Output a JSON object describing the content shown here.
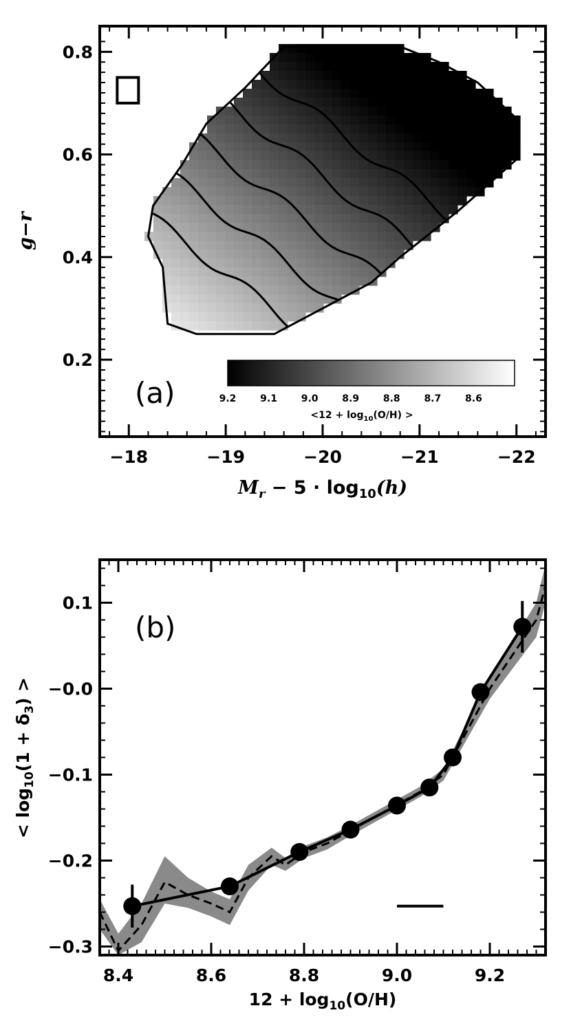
{
  "chart_data": [
    {
      "type": "heatmap",
      "panel_label": "(a)",
      "xlabel": "M_r − 5·log10(h)",
      "xlabel_parts": {
        "main": "M",
        "sub": "r",
        "rest": " − 5 · log",
        "sub2": "10",
        "tail": "(h)"
      },
      "ylabel": "g−r",
      "xlim": [
        -17.7,
        -22.3
      ],
      "ylim": [
        0.05,
        0.85
      ],
      "x_ticks": [
        -18,
        -19,
        -20,
        -21,
        -22
      ],
      "x_tick_labels": [
        "−18",
        "−19",
        "−20",
        "−21",
        "−22"
      ],
      "y_ticks": [
        0.2,
        0.4,
        0.6,
        0.8
      ],
      "y_tick_labels": [
        "0.2",
        "0.4",
        "0.6",
        "0.8"
      ],
      "colorbar": {
        "range": [
          9.2,
          8.5
        ],
        "ticks": [
          9.2,
          9.1,
          9.0,
          8.9,
          8.8,
          8.7,
          8.6
        ],
        "tick_labels": [
          "9.2",
          "9.1",
          "9.0",
          "8.9",
          "8.8",
          "8.7",
          "8.6"
        ],
        "title": "<12 + log10(O/H) >",
        "title_parts": {
          "pre": "<12 + log",
          "sub": "10",
          "post": "(O/H) >"
        },
        "colors": [
          "#000000",
          "#ffffff"
        ]
      },
      "region_outline": [
        [
          -18.7,
          0.25
        ],
        [
          -18.4,
          0.27
        ],
        [
          -18.35,
          0.38
        ],
        [
          -18.2,
          0.44
        ],
        [
          -18.25,
          0.5
        ],
        [
          -18.55,
          0.58
        ],
        [
          -18.8,
          0.66
        ],
        [
          -19.2,
          0.73
        ],
        [
          -19.6,
          0.81
        ],
        [
          -20.8,
          0.81
        ],
        [
          -21.2,
          0.78
        ],
        [
          -21.6,
          0.74
        ],
        [
          -22.0,
          0.67
        ],
        [
          -22.0,
          0.59
        ],
        [
          -21.4,
          0.49
        ],
        [
          -20.8,
          0.4
        ],
        [
          -20.5,
          0.35
        ],
        [
          -20.1,
          0.31
        ],
        [
          -19.8,
          0.28
        ],
        [
          -19.5,
          0.25
        ]
      ],
      "metallicity_model": {
        "base": 8.95,
        "mag_coef": -0.13,
        "color_coef": 0.9,
        "mag_center": -19.8,
        "color_center": 0.53
      },
      "contour_levels": [
        8.7,
        8.8,
        8.9,
        9.0,
        9.1
      ],
      "error_box": {
        "x": [
          -17.88,
          -18.1
        ],
        "y": [
          0.7,
          0.75
        ]
      }
    },
    {
      "type": "line",
      "panel_label": "(b)",
      "xlabel": "12 + log10(O/H)",
      "xlabel_parts": {
        "pre": "12 + log",
        "sub": "10",
        "post": "(O/H)"
      },
      "ylabel": "< log10(1 + δ3) >",
      "ylabel_parts": {
        "pre": "< log",
        "sub": "10",
        "mid": "(1 + δ",
        "sub2": "3",
        "post": ") >"
      },
      "xlim": [
        8.36,
        9.32
      ],
      "ylim": [
        -0.31,
        0.15
      ],
      "x_ticks": [
        8.4,
        8.6,
        8.8,
        9.0,
        9.2
      ],
      "x_tick_labels": [
        "8.4",
        "8.6",
        "8.8",
        "9.0",
        "9.2"
      ],
      "y_ticks": [
        0.1,
        0.0,
        -0.1,
        -0.2,
        -0.3
      ],
      "y_tick_labels": [
        "0.1",
        "−0.0",
        "−0.1",
        "−0.2",
        "−0.3"
      ],
      "series": [
        {
          "style": "solid-with-points",
          "x": [
            8.43,
            8.64,
            8.79,
            8.9,
            9.0,
            9.07,
            9.12,
            9.18,
            9.27
          ],
          "y": [
            -0.253,
            -0.23,
            -0.19,
            -0.164,
            -0.136,
            -0.115,
            -0.08,
            -0.004,
            0.072
          ],
          "yerr": [
            0.025,
            0.004,
            0.004,
            0.003,
            0.003,
            0.004,
            0.005,
            0.008,
            0.03
          ]
        },
        {
          "style": "dashed",
          "x": [
            8.36,
            8.4,
            8.45,
            8.5,
            8.55,
            8.6,
            8.64,
            8.68,
            8.73,
            8.76,
            8.8,
            8.85,
            8.9,
            8.95,
            9.0,
            9.05,
            9.1,
            9.12,
            9.16,
            9.2,
            9.25,
            9.3,
            9.32
          ],
          "y": [
            -0.26,
            -0.305,
            -0.275,
            -0.225,
            -0.24,
            -0.25,
            -0.26,
            -0.22,
            -0.195,
            -0.205,
            -0.19,
            -0.18,
            -0.165,
            -0.15,
            -0.135,
            -0.12,
            -0.1,
            -0.08,
            -0.04,
            0.0,
            0.04,
            0.08,
            0.12
          ]
        },
        {
          "style": "band",
          "x": [
            8.36,
            8.4,
            8.45,
            8.5,
            8.55,
            8.6,
            8.64,
            8.68,
            8.73,
            8.76,
            8.8,
            8.85,
            8.9,
            8.95,
            9.0,
            9.05,
            9.1,
            9.12,
            9.16,
            9.2,
            9.25,
            9.3,
            9.32
          ],
          "y_low": [
            -0.28,
            -0.31,
            -0.295,
            -0.25,
            -0.255,
            -0.265,
            -0.275,
            -0.235,
            -0.205,
            -0.212,
            -0.197,
            -0.187,
            -0.171,
            -0.156,
            -0.141,
            -0.126,
            -0.107,
            -0.088,
            -0.05,
            -0.012,
            0.024,
            0.06,
            0.1
          ],
          "y_high": [
            -0.245,
            -0.285,
            -0.25,
            -0.195,
            -0.22,
            -0.236,
            -0.245,
            -0.205,
            -0.185,
            -0.197,
            -0.183,
            -0.173,
            -0.159,
            -0.144,
            -0.129,
            -0.114,
            -0.093,
            -0.072,
            -0.03,
            0.012,
            0.056,
            0.1,
            0.145
          ]
        }
      ],
      "error_bar_segment": {
        "x": [
          9.0,
          9.1
        ],
        "y": -0.253
      }
    }
  ]
}
